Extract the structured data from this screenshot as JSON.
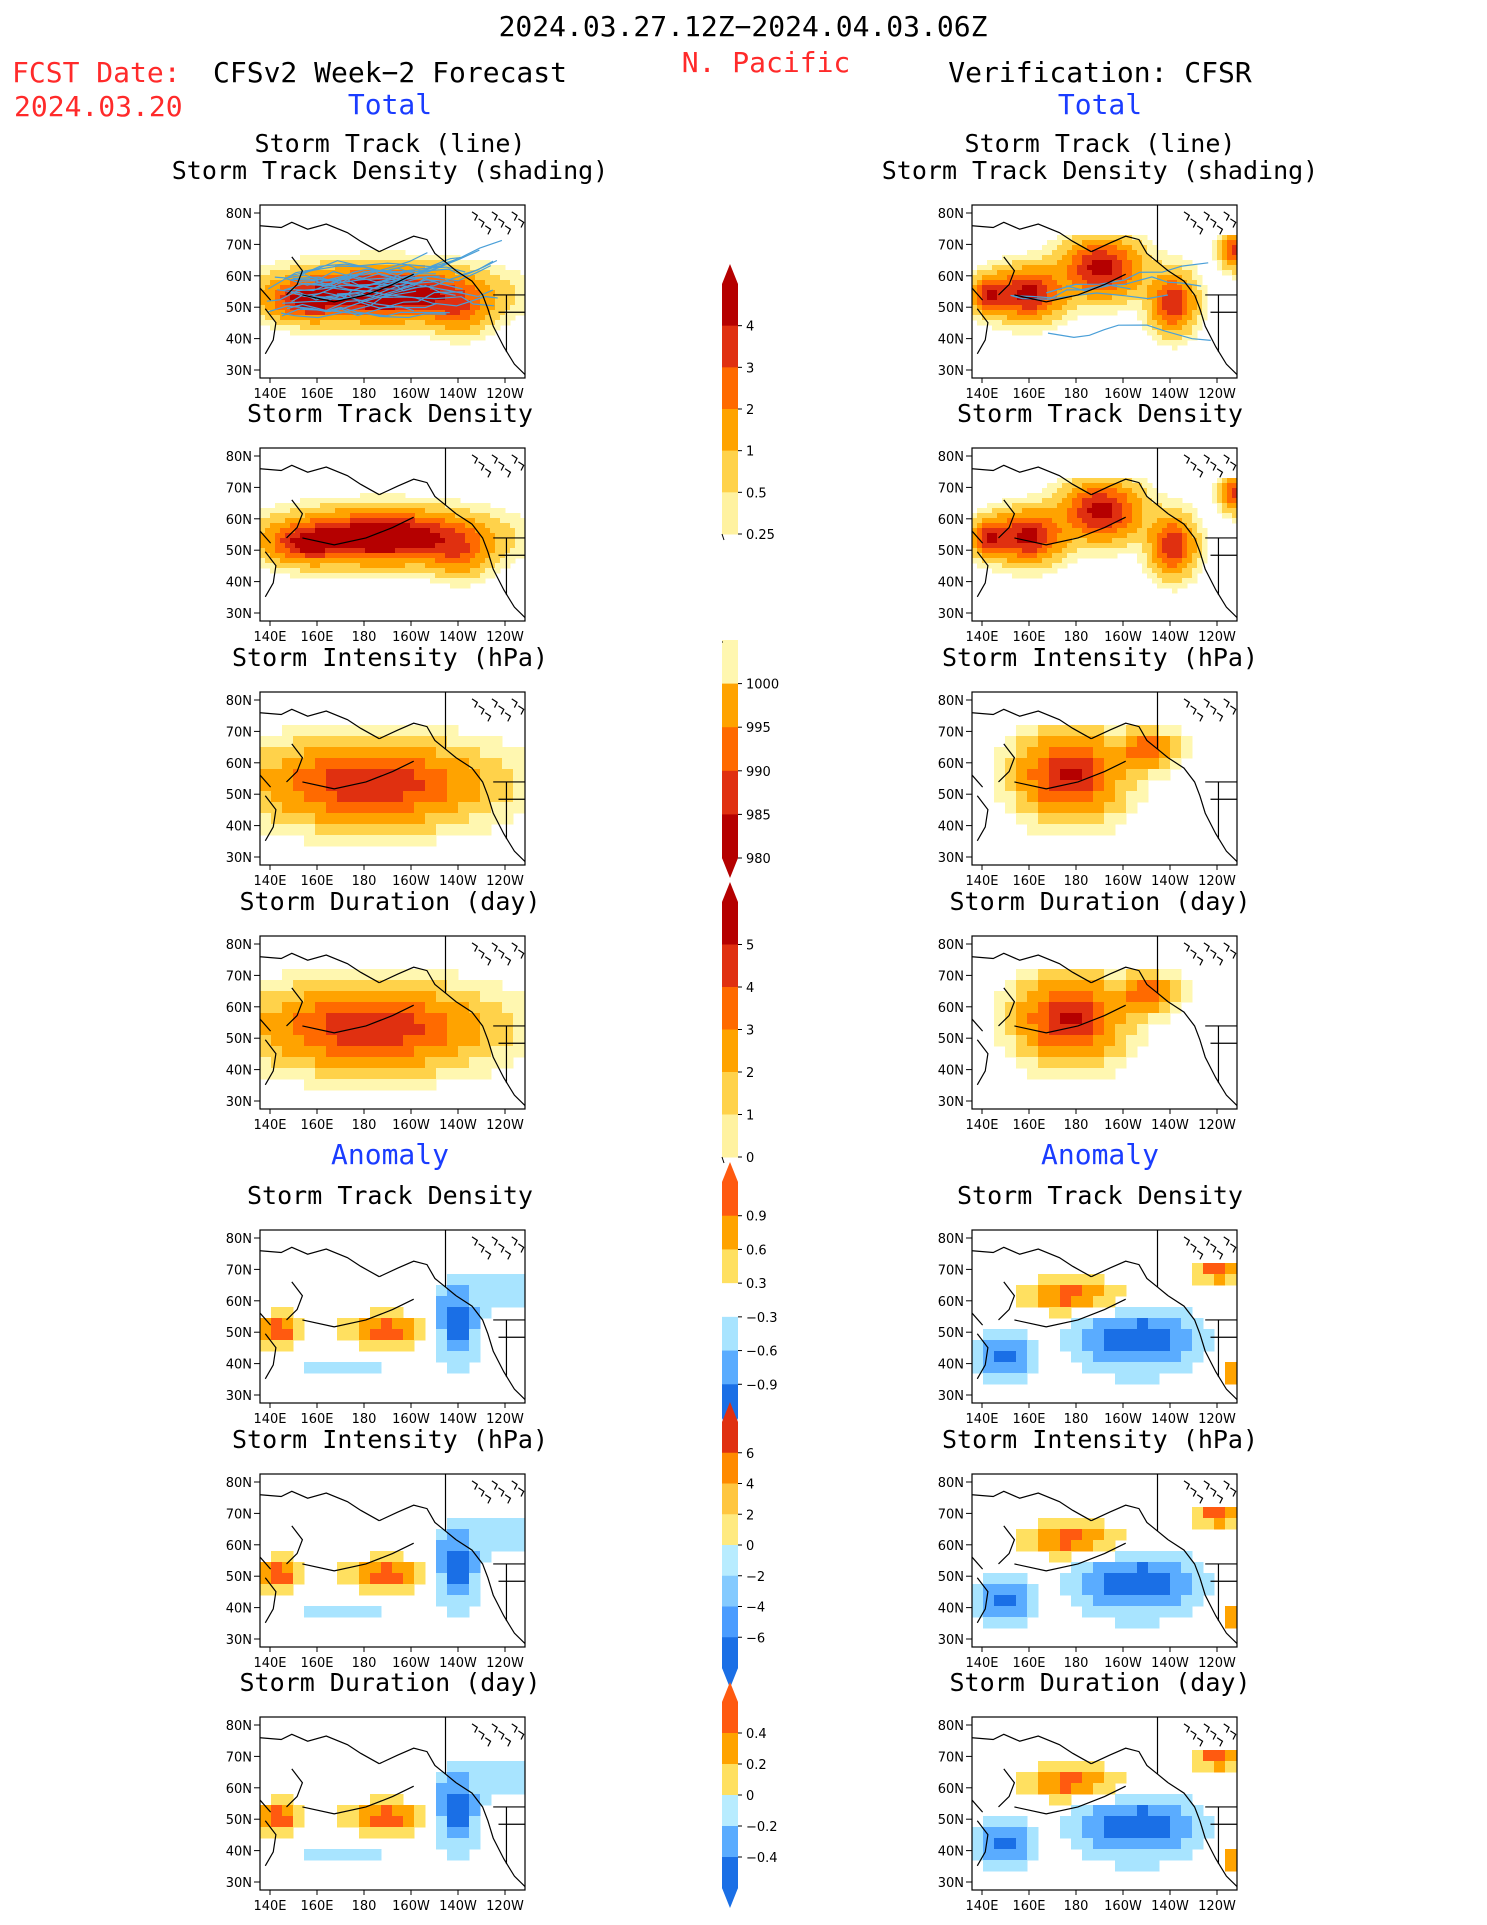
{
  "header": {
    "period": "2024.03.27.12Z−2024.04.03.06Z",
    "region": "N. Pacific",
    "fcst_label": "FCST Date:",
    "fcst_date": "2024.03.20",
    "left_title": "CFSv2 Week−2 Forecast",
    "right_title": "Verification: CFSR"
  },
  "sections": {
    "total": "Total",
    "anomaly": "Anomaly"
  },
  "axes": {
    "lat_ticks": [
      "80N",
      "70N",
      "60N",
      "50N",
      "40N",
      "30N"
    ],
    "lon_ticks": [
      "140E",
      "160E",
      "180",
      "160W",
      "140W",
      "120W"
    ]
  },
  "panels": [
    {
      "id": "track-line",
      "title1": "Storm Track (line)",
      "title2": "Storm Track Density (shading)"
    },
    {
      "id": "track-density",
      "title1": "Storm Track Density"
    },
    {
      "id": "intensity",
      "title1": "Storm Intensity (hPa)"
    },
    {
      "id": "duration",
      "title1": "Storm Duration (day)"
    },
    {
      "id": "anom-density",
      "title1": "Storm Track Density"
    },
    {
      "id": "anom-intensity",
      "title1": "Storm Intensity (hPa)"
    },
    {
      "id": "anom-duration",
      "title1": "Storm Duration (day)"
    }
  ],
  "colorbars": [
    {
      "id": "density",
      "labels": [
        "4",
        "3",
        "2",
        "1",
        "0.5",
        "0.25"
      ],
      "colors": [
        "#b50000",
        "#e03010",
        "#ff6a00",
        "#ffa300",
        "#ffd24a",
        "#fff2a0"
      ],
      "top_arrow": true,
      "bottom_arrow": false
    },
    {
      "id": "intensity",
      "labels": [
        "1000",
        "995",
        "990",
        "985",
        "980"
      ],
      "colors": [
        "#fff7b0",
        "#ffa300",
        "#ff6a00",
        "#e03010",
        "#b50000"
      ],
      "top_arrow": false,
      "bottom_arrow": true
    },
    {
      "id": "duration",
      "labels": [
        "5",
        "4",
        "3",
        "2",
        "1",
        "0"
      ],
      "colors": [
        "#b50000",
        "#e03010",
        "#ff6a00",
        "#ffa300",
        "#ffd24a",
        "#fff2a0"
      ],
      "top_arrow": true,
      "bottom_arrow": false
    },
    {
      "id": "anom-density",
      "labels": [
        "0.9",
        "0.6",
        "0.3",
        "−0.3",
        "−0.6",
        "−0.9"
      ],
      "colors": [
        "#ff5a10",
        "#ffa300",
        "#ffe060",
        "#ffffff",
        "#a8e4ff",
        "#5aacff",
        "#1a6fe6"
      ],
      "top_arrow": true,
      "bottom_arrow": true
    },
    {
      "id": "anom-intensity",
      "labels": [
        "6",
        "4",
        "2",
        "0",
        "−2",
        "−4",
        "−6"
      ],
      "colors": [
        "#e03010",
        "#ff8a00",
        "#ffc640",
        "#ffea80",
        "#b8ecff",
        "#84caff",
        "#4a9cff",
        "#1a6fe6"
      ],
      "top_arrow": true,
      "bottom_arrow": true
    },
    {
      "id": "anom-duration",
      "labels": [
        "0.4",
        "0.2",
        "0",
        "−0.2",
        "−0.4"
      ],
      "colors": [
        "#ff5a10",
        "#ffa300",
        "#ffe060",
        "#b8ecff",
        "#5aacff",
        "#1a6fe6"
      ],
      "top_arrow": true,
      "bottom_arrow": true
    }
  ],
  "colors": {
    "track_line": "#4a9fd8",
    "red_1": "#ff2a2a",
    "blue_1": "#1a3cff"
  }
}
